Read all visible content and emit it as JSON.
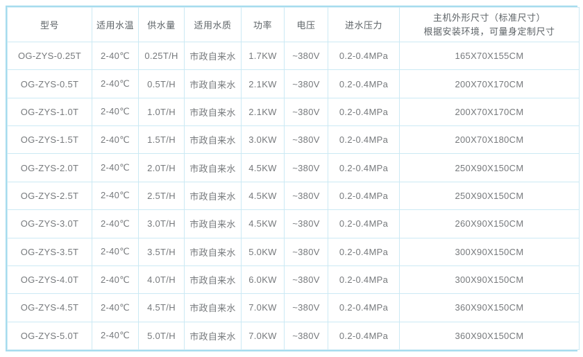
{
  "colors": {
    "background": "#ffffff",
    "border_outer": "#a6dcee",
    "border_inner": "#cbe9f4",
    "header_text": "#5d6367",
    "body_text": "#76797c"
  },
  "table": {
    "columns": [
      {
        "key": "model",
        "label": "型号"
      },
      {
        "key": "water-temp",
        "label": "适用水温"
      },
      {
        "key": "supply-volume",
        "label": "供水量"
      },
      {
        "key": "water-quality",
        "label": "适用水质"
      },
      {
        "key": "power",
        "label": "功率"
      },
      {
        "key": "voltage",
        "label": "电压"
      },
      {
        "key": "inlet-pressure",
        "label": "进水压力"
      },
      {
        "key": "dimensions",
        "label": "主机外形尺寸（标准尺寸）",
        "label_line2": "根据安装环境，可量身定制尺寸"
      }
    ],
    "rows": [
      [
        "OG-ZYS-0.25T",
        "2-40℃",
        "0.25T/H",
        "市政自来水",
        "1.7KW",
        "~380V",
        "0.2-0.4MPa",
        "165X70X155CM"
      ],
      [
        "OG-ZYS-0.5T",
        "2-40℃",
        "0.5T/H",
        "市政自来水",
        "2.1KW",
        "~380V",
        "0.2-0.4MPa",
        "200X70X170CM"
      ],
      [
        "OG-ZYS-1.0T",
        "2-40℃",
        "1.0T/H",
        "市政自来水",
        "2.1KW",
        "~380V",
        "0.2-0.4MPa",
        "200X70X170CM"
      ],
      [
        "OG-ZYS-1.5T",
        "2-40℃",
        "1.5T/H",
        "市政自来水",
        "3.0KW",
        "~380V",
        "0.2-0.4MPa",
        "200X70X180CM"
      ],
      [
        "OG-ZYS-2.0T",
        "2-40℃",
        "2.0T/H",
        "市政自来水",
        "4.5KW",
        "~380V",
        "0.2-0.4MPa",
        "250X90X150CM"
      ],
      [
        "OG-ZYS-2.5T",
        "2-40℃",
        "2.5T/H",
        "市政自来水",
        "4.5KW",
        "~380V",
        "0.2-0.4MPa",
        "250X90X150CM"
      ],
      [
        "OG-ZYS-3.0T",
        "2-40℃",
        "3.0T/H",
        "市政自来水",
        "4.5KW",
        "~380V",
        "0.2-0.4MPa",
        "260X90X150CM"
      ],
      [
        "OG-ZYS-3.5T",
        "2-40℃",
        "3.5T/H",
        "市政自来水",
        "5.0KW",
        "~380V",
        "0.2-0.4MPa",
        "300X90X150CM"
      ],
      [
        "OG-ZYS-4.0T",
        "2-40℃",
        "4.0T/H",
        "市政自来水",
        "6.0KW",
        "~380V",
        "0.2-0.4MPa",
        "300X90X150CM"
      ],
      [
        "OG-ZYS-4.5T",
        "2-40℃",
        "4.5T/H",
        "市政自来水",
        "7.0KW",
        "~380V",
        "0.2-0.4MPa",
        "360X90X150CM"
      ],
      [
        "OG-ZYS-5.0T",
        "2-40℃",
        "5.0T/H",
        "市政自来水",
        "7.0KW",
        "~380V",
        "0.2-0.4MPa",
        "360X90X150CM"
      ]
    ]
  },
  "chart_data": {
    "type": "table",
    "title": "",
    "columns": [
      "型号",
      "适用水温",
      "供水量",
      "适用水质",
      "功率",
      "电压",
      "进水压力",
      "主机外形尺寸（标准尺寸）根据安装环境，可量身定制尺寸"
    ],
    "rows": [
      [
        "OG-ZYS-0.25T",
        "2-40℃",
        "0.25T/H",
        "市政自来水",
        "1.7KW",
        "~380V",
        "0.2-0.4MPa",
        "165X70X155CM"
      ],
      [
        "OG-ZYS-0.5T",
        "2-40℃",
        "0.5T/H",
        "市政自来水",
        "2.1KW",
        "~380V",
        "0.2-0.4MPa",
        "200X70X170CM"
      ],
      [
        "OG-ZYS-1.0T",
        "2-40℃",
        "1.0T/H",
        "市政自来水",
        "2.1KW",
        "~380V",
        "0.2-0.4MPa",
        "200X70X170CM"
      ],
      [
        "OG-ZYS-1.5T",
        "2-40℃",
        "1.5T/H",
        "市政自来水",
        "3.0KW",
        "~380V",
        "0.2-0.4MPa",
        "200X70X180CM"
      ],
      [
        "OG-ZYS-2.0T",
        "2-40℃",
        "2.0T/H",
        "市政自来水",
        "4.5KW",
        "~380V",
        "0.2-0.4MPa",
        "250X90X150CM"
      ],
      [
        "OG-ZYS-2.5T",
        "2-40℃",
        "2.5T/H",
        "市政自来水",
        "4.5KW",
        "~380V",
        "0.2-0.4MPa",
        "250X90X150CM"
      ],
      [
        "OG-ZYS-3.0T",
        "2-40℃",
        "3.0T/H",
        "市政自来水",
        "4.5KW",
        "~380V",
        "0.2-0.4MPa",
        "260X90X150CM"
      ],
      [
        "OG-ZYS-3.5T",
        "2-40℃",
        "3.5T/H",
        "市政自来水",
        "5.0KW",
        "~380V",
        "0.2-0.4MPa",
        "300X90X150CM"
      ],
      [
        "OG-ZYS-4.0T",
        "2-40℃",
        "4.0T/H",
        "市政自来水",
        "6.0KW",
        "~380V",
        "0.2-0.4MPa",
        "300X90X150CM"
      ],
      [
        "OG-ZYS-4.5T",
        "2-40℃",
        "4.5T/H",
        "市政自来水",
        "7.0KW",
        "~380V",
        "0.2-0.4MPa",
        "360X90X150CM"
      ],
      [
        "OG-ZYS-5.0T",
        "2-40℃",
        "5.0T/H",
        "市政自来水",
        "7.0KW",
        "~380V",
        "0.2-0.4MPa",
        "360X90X150CM"
      ]
    ]
  }
}
